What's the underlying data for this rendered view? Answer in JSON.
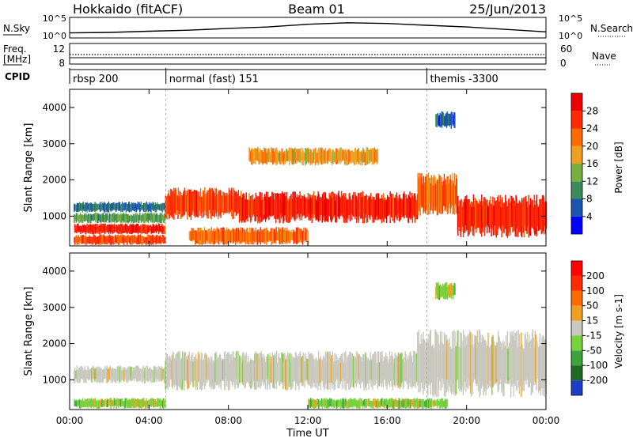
{
  "header": {
    "title": "Hokkaido (fitACF)",
    "beam": "Beam 01",
    "date": "25/Jun/2013"
  },
  "nsky_panel": {
    "label": "N.Sky",
    "ticks": [
      "10^5",
      "10^0"
    ],
    "right_label": "N.Search",
    "right_ticks": [
      "10^5",
      "10^0"
    ]
  },
  "freq_panel": {
    "label_line1": "Freq.",
    "label_line2": "[MHz]",
    "ticks": [
      "12",
      "8"
    ],
    "right_label": "Nave",
    "right_ticks": [
      "60",
      "0"
    ]
  },
  "cpid_panel": {
    "label": "CPID",
    "segments": [
      {
        "start_h": 0,
        "text": "rbsp 200"
      },
      {
        "start_h": 4.85,
        "text": "normal (fast) 151"
      },
      {
        "start_h": 18.0,
        "text": "themis -3300"
      }
    ]
  },
  "x_axis": {
    "label": "Time UT",
    "ticks": [
      "00:00",
      "04:00",
      "08:00",
      "12:00",
      "16:00",
      "20:00",
      "00:00"
    ]
  },
  "power_panel": {
    "ylabel": "Slant Range [km]",
    "yticks": [
      "1000",
      "2000",
      "3000",
      "4000"
    ],
    "colorbar_label": "Power [dB]",
    "colorbar_ticks": [
      "4",
      "8",
      "12",
      "16",
      "20",
      "24",
      "28"
    ]
  },
  "velocity_panel": {
    "ylabel": "Slant Range [km]",
    "yticks": [
      "1000",
      "2000",
      "3000",
      "4000"
    ],
    "colorbar_label": "Velocity [m s-1]",
    "colorbar_ticks": [
      "200",
      "100",
      "50",
      "15",
      "-15",
      "-50",
      "-100",
      "-200"
    ]
  },
  "colors": {
    "power_scale": [
      "#0000ff",
      "#1a55b0",
      "#3d8a5a",
      "#78b040",
      "#f0a020",
      "#ff6a00",
      "#ff2a00",
      "#ee0000"
    ],
    "velocity_scale": [
      "#1e3cc8",
      "#1f6b23",
      "#3ca33c",
      "#78d23c",
      "#c8c8be",
      "#f0a020",
      "#ff6a00",
      "#ff2a00",
      "#ff0000"
    ]
  },
  "chart_data": [
    {
      "type": "heatmap",
      "title": "Power",
      "xlabel": "Time UT",
      "ylabel": "Slant Range [km]",
      "xlim": [
        0,
        24
      ],
      "ylim": [
        180,
        4500
      ],
      "zlabel": "Power [dB]",
      "zlim": [
        0,
        30
      ],
      "regions": [
        {
          "t0": 0.2,
          "t1": 4.8,
          "r0": 200,
          "r1": 500,
          "power": 24
        },
        {
          "t0": 0.2,
          "t1": 4.8,
          "r0": 500,
          "r1": 800,
          "power": 27
        },
        {
          "t0": 0.2,
          "t1": 4.8,
          "r0": 800,
          "r1": 1100,
          "power": 10
        },
        {
          "t0": 0.2,
          "t1": 4.8,
          "r0": 1100,
          "r1": 1400,
          "power": 6
        },
        {
          "t0": 4.8,
          "t1": 8.5,
          "r0": 900,
          "r1": 1800,
          "power": 25
        },
        {
          "t0": 8.5,
          "t1": 17.5,
          "r0": 800,
          "r1": 1700,
          "power": 27
        },
        {
          "t0": 6.0,
          "t1": 12.0,
          "r0": 200,
          "r1": 700,
          "power": 22
        },
        {
          "t0": 17.5,
          "t1": 19.5,
          "r0": 1000,
          "r1": 2200,
          "power": 22
        },
        {
          "t0": 19.5,
          "t1": 24.0,
          "r0": 400,
          "r1": 1600,
          "power": 27
        },
        {
          "t0": 18.4,
          "t1": 19.4,
          "r0": 3400,
          "r1": 3900,
          "power": 5
        },
        {
          "t0": 9.0,
          "t1": 15.5,
          "r0": 2400,
          "r1": 2900,
          "power": 18
        }
      ]
    },
    {
      "type": "heatmap",
      "title": "Velocity",
      "xlabel": "Time UT",
      "ylabel": "Slant Range [km]",
      "xlim": [
        0,
        24
      ],
      "ylim": [
        180,
        4500
      ],
      "zlabel": "Velocity [m s-1]",
      "zlim": [
        -200,
        200
      ],
      "regions": [
        {
          "t0": 0.2,
          "t1": 4.8,
          "r0": 900,
          "r1": 1400,
          "velocity": 0
        },
        {
          "t0": 0.2,
          "t1": 4.8,
          "r0": 200,
          "r1": 500,
          "velocity": 40
        },
        {
          "t0": 4.8,
          "t1": 17.5,
          "r0": 700,
          "r1": 1800,
          "velocity": 0
        },
        {
          "t0": 17.5,
          "t1": 24.0,
          "r0": 500,
          "r1": 2400,
          "velocity": 0
        },
        {
          "t0": 12.0,
          "t1": 19.0,
          "r0": 200,
          "r1": 500,
          "velocity": 40
        },
        {
          "t0": 18.4,
          "t1": 19.4,
          "r0": 3200,
          "r1": 3700,
          "velocity": 40
        }
      ]
    },
    {
      "type": "line",
      "title": "N.Sky",
      "x": [
        0,
        2,
        4,
        6,
        8,
        10,
        12,
        14,
        16,
        18,
        20,
        22,
        24
      ],
      "series": [
        {
          "values": [
            10,
            14,
            30,
            60,
            200,
            500,
            3000,
            8000,
            5000,
            1500,
            500,
            100,
            20
          ]
        }
      ],
      "ylim": [
        1,
        100000
      ],
      "log_scale": true
    }
  ]
}
